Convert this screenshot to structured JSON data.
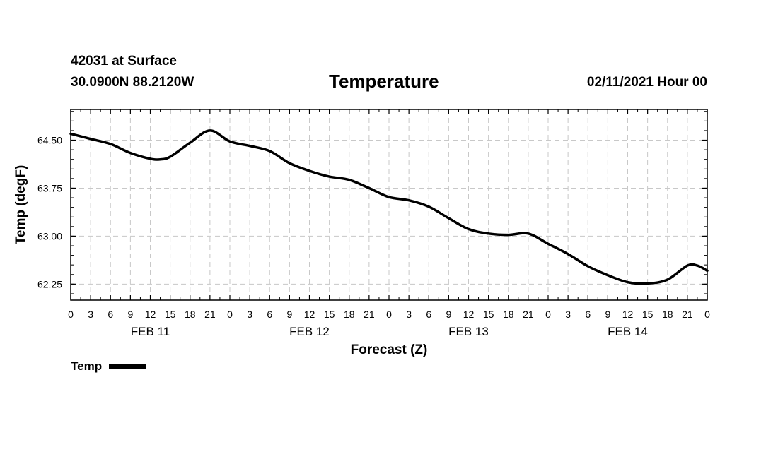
{
  "header": {
    "station": "42031 at Surface",
    "coords": "30.0900N 88.2120W",
    "title": "Temperature",
    "datetime": "02/11/2021 Hour 00"
  },
  "chart_data": {
    "type": "line",
    "title": "Temperature",
    "xlabel": "Forecast (Z)",
    "ylabel": "Temp (degF)",
    "xlim": [
      0,
      96
    ],
    "ylim": [
      62.0,
      64.98
    ],
    "yticks": [
      62.25,
      63.0,
      63.75,
      64.5
    ],
    "ytick_labels": [
      "62.25",
      "63.00",
      "63.75",
      "64.50"
    ],
    "xticks": [
      0,
      3,
      6,
      9,
      12,
      15,
      18,
      21,
      24,
      27,
      30,
      33,
      36,
      39,
      42,
      45,
      48,
      51,
      54,
      57,
      60,
      63,
      66,
      69,
      72,
      75,
      78,
      81,
      84,
      87,
      90,
      93,
      96
    ],
    "xtick_labels": [
      "0",
      "3",
      "6",
      "9",
      "12",
      "15",
      "18",
      "21",
      "0",
      "3",
      "6",
      "9",
      "12",
      "15",
      "18",
      "21",
      "0",
      "3",
      "6",
      "9",
      "12",
      "15",
      "18",
      "21",
      "0",
      "3",
      "6",
      "9",
      "12",
      "15",
      "18",
      "21",
      "0"
    ],
    "day_labels": [
      {
        "x": 12,
        "label": "FEB 11"
      },
      {
        "x": 36,
        "label": "FEB 12"
      },
      {
        "x": 60,
        "label": "FEB 13"
      },
      {
        "x": 84,
        "label": "FEB 14"
      }
    ],
    "grid": true,
    "legend_position": "bottom-left",
    "series": [
      {
        "name": "Temp",
        "color": "#000000",
        "x": [
          0,
          3,
          6,
          9,
          12,
          13.5,
          15,
          18,
          21,
          24,
          27,
          30,
          33,
          36,
          39,
          42,
          45,
          48,
          51,
          54,
          57,
          60,
          63,
          66,
          69,
          72,
          75,
          78,
          81,
          84,
          87,
          90,
          93,
          94.5,
          96
        ],
        "values": [
          64.6,
          64.52,
          64.44,
          64.3,
          64.21,
          64.2,
          64.24,
          64.46,
          64.65,
          64.48,
          64.41,
          64.33,
          64.14,
          64.02,
          63.93,
          63.88,
          63.75,
          63.61,
          63.56,
          63.46,
          63.28,
          63.11,
          63.04,
          63.02,
          63.04,
          62.88,
          62.72,
          62.53,
          62.39,
          62.28,
          62.26,
          62.32,
          62.54,
          62.54,
          62.46
        ]
      }
    ]
  },
  "legend": {
    "label": "Temp"
  }
}
